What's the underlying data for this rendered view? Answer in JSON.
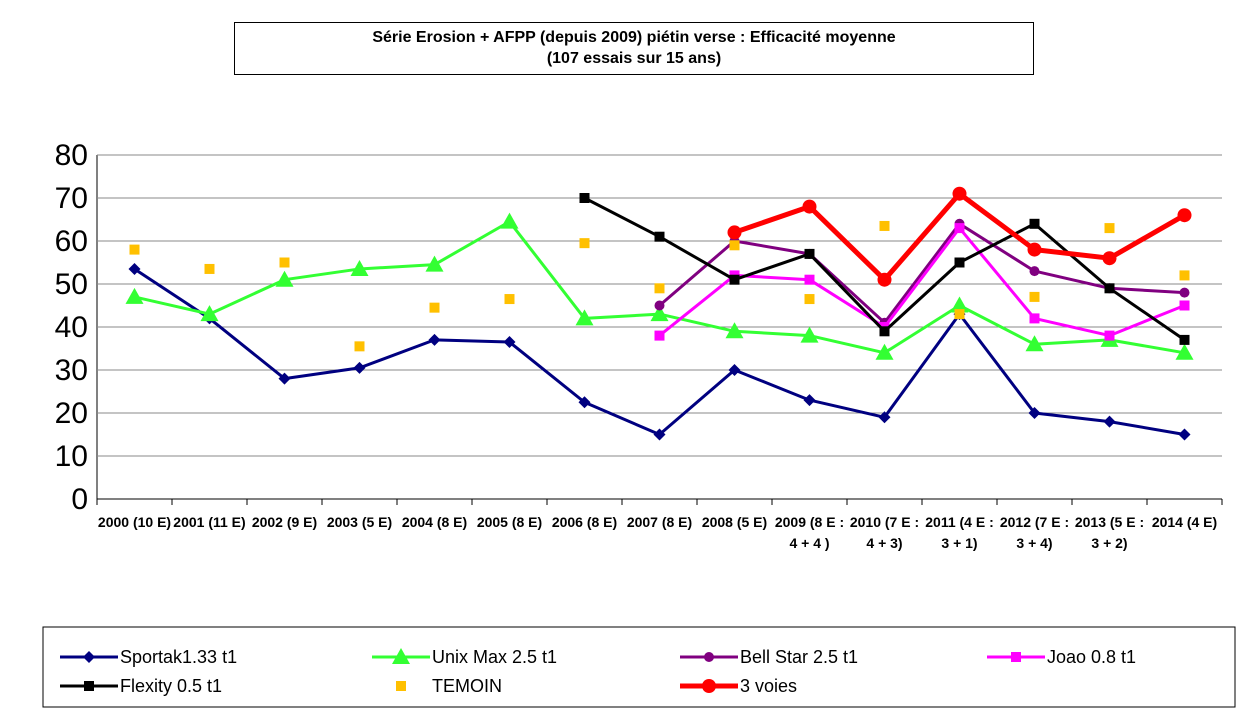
{
  "chart_data": {
    "type": "line",
    "title": "Série Erosion + AFPP (depuis 2009) piétin verse : Efficacité moyenne",
    "subtitle": "(107 essais sur 15 ans)",
    "categories": [
      "2000 (10 E)",
      "2001 (11 E)",
      "2002 (9 E)",
      "2003 (5 E)",
      "2004 (8 E)",
      "2005 (8 E)",
      "2006 (8 E)",
      "2007 (8 E)",
      "2008 (5 E)",
      "2009 (8 E : 4 + 4 )",
      "2010 (7 E : 4 + 3)",
      "2011 (4 E : 3 + 1)",
      "2012 (7 E : 3 + 4)",
      "2013 (5 E : 3 + 2)",
      "2014 (4 E)"
    ],
    "ylim": [
      0,
      80
    ],
    "yticks": [
      0,
      10,
      20,
      30,
      40,
      50,
      60,
      70,
      80
    ],
    "grid": true,
    "series": [
      {
        "name": "Sportak1.33 t1",
        "color": "#000080",
        "marker": "diamond",
        "line": true,
        "values": [
          53.5,
          42,
          28,
          30.5,
          37,
          36.5,
          22.5,
          15,
          30,
          23,
          19,
          43,
          20,
          18,
          15
        ]
      },
      {
        "name": "Unix Max 2.5 t1",
        "color": "#33ff33",
        "marker": "triangle",
        "line": true,
        "values": [
          47,
          43,
          51,
          53.5,
          54.5,
          64.5,
          42,
          43,
          39,
          38,
          34,
          45,
          36,
          37,
          34
        ]
      },
      {
        "name": "Bell Star 2.5 t1",
        "color": "#800080",
        "marker": "circle",
        "line": true,
        "values": [
          null,
          null,
          null,
          null,
          null,
          null,
          null,
          45,
          60,
          57,
          41,
          64,
          53,
          49,
          48
        ]
      },
      {
        "name": "Joao 0.8 t1",
        "color": "#ff00ff",
        "marker": "square",
        "line": true,
        "values": [
          null,
          null,
          null,
          null,
          null,
          null,
          null,
          38,
          52,
          51,
          40,
          63,
          42,
          38,
          45
        ]
      },
      {
        "name": "Flexity 0.5 t1",
        "color": "#000000",
        "marker": "square",
        "line": true,
        "values": [
          null,
          null,
          null,
          null,
          null,
          null,
          70,
          61,
          51,
          57,
          39,
          55,
          64,
          49,
          37
        ]
      },
      {
        "name": "TEMOIN",
        "color": "#ffc000",
        "marker": "square",
        "line": false,
        "values": [
          58,
          53.5,
          55,
          35.5,
          44.5,
          46.5,
          59.5,
          49,
          59,
          46.5,
          63.5,
          43,
          47,
          63,
          52
        ]
      },
      {
        "name": "3 voies",
        "color": "#ff0000",
        "marker": "bigcircle",
        "line": true,
        "values": [
          null,
          null,
          null,
          null,
          null,
          null,
          null,
          null,
          62,
          68,
          51,
          71,
          58,
          56,
          66
        ]
      }
    ]
  }
}
